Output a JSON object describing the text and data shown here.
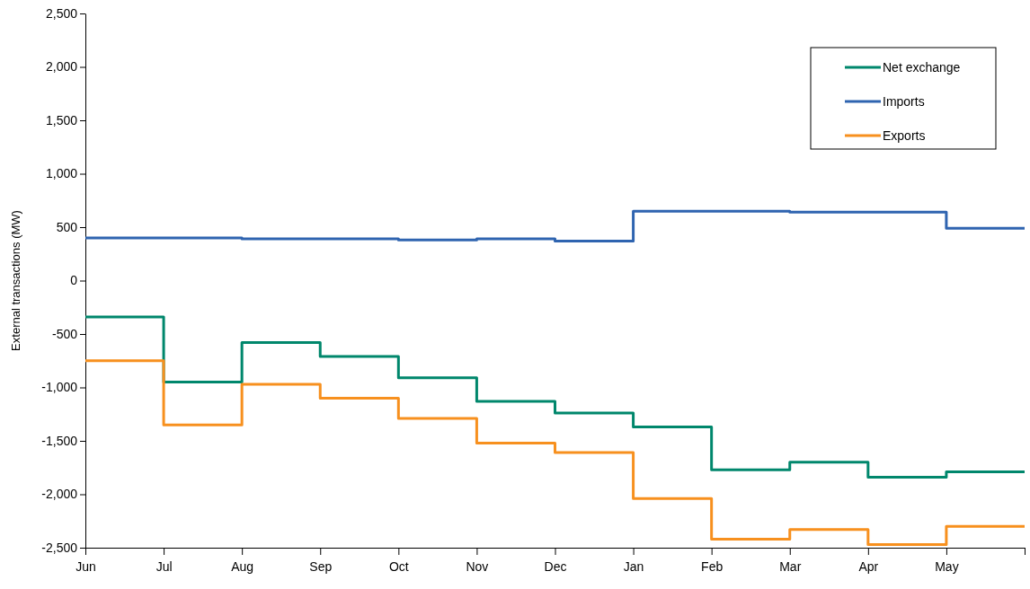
{
  "chart_data": {
    "type": "step",
    "ylabel": "External transactions (MW)",
    "categories": [
      "Jun",
      "Jul",
      "Aug",
      "Sep",
      "Oct",
      "Nov",
      "Dec",
      "Jan",
      "Feb",
      "Mar",
      "Apr",
      "May",
      null
    ],
    "ylim": [
      -2500,
      2500
    ],
    "yticks": [
      {
        "value": -2500,
        "label": "-2,500"
      },
      {
        "value": -2000,
        "label": "-2,000"
      },
      {
        "value": -1500,
        "label": "-1,500"
      },
      {
        "value": -1000,
        "label": "-1,000"
      },
      {
        "value": -500,
        "label": "-500"
      },
      {
        "value": 0,
        "label": "0"
      },
      {
        "value": 500,
        "label": "500"
      },
      {
        "value": 1000,
        "label": "1,000"
      },
      {
        "value": 1500,
        "label": "1,500"
      },
      {
        "value": 2000,
        "label": "2,000"
      },
      {
        "value": 2500,
        "label": "2,500"
      }
    ],
    "series": [
      {
        "name": "Net exchange",
        "color": "#00876c",
        "values": [
          -340,
          -950,
          -580,
          -710,
          -910,
          -1130,
          -1240,
          -1370,
          -1770,
          -1700,
          -1840,
          -1790,
          -1790
        ]
      },
      {
        "name": "Imports",
        "color": "#2f64b0",
        "values": [
          400,
          400,
          390,
          390,
          380,
          390,
          370,
          650,
          650,
          640,
          640,
          490,
          490
        ]
      },
      {
        "name": "Exports",
        "color": "#f7901e",
        "values": [
          -750,
          -1350,
          -970,
          -1100,
          -1290,
          -1520,
          -1610,
          -2040,
          -2420,
          -2330,
          -2470,
          -2300,
          -2300
        ]
      }
    ],
    "legend": "top right",
    "grid": false,
    "marker": "none",
    "line_style": "solid"
  }
}
